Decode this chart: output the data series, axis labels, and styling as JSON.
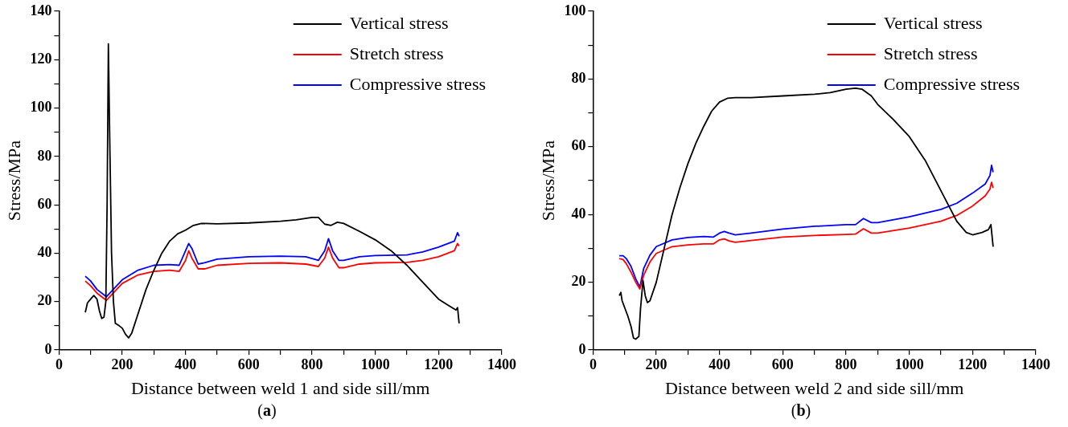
{
  "chart_data": [
    {
      "type": "line",
      "xlabel": "Distance between weld 1 and side sill/mm",
      "ylabel": "Stress/MPa",
      "annotations": [
        "(a)"
      ],
      "legend": "top right",
      "grid": false,
      "marker": "none",
      "line_style": "solid",
      "xlim": [
        0,
        1400
      ],
      "xticks": [
        0,
        {
          "value": 100,
          "label": null
        },
        200,
        {
          "value": 300,
          "label": null
        },
        400,
        {
          "value": 500,
          "label": null
        },
        600,
        {
          "value": 700,
          "label": null
        },
        800,
        {
          "value": 900,
          "label": null
        },
        1000,
        {
          "value": 1100,
          "label": null
        },
        1200,
        {
          "value": 1300,
          "label": null
        },
        1400
      ],
      "ylim": [
        0,
        140
      ],
      "yticks": [
        0,
        {
          "value": 10,
          "label": null
        },
        20,
        {
          "value": 30,
          "label": null
        },
        40,
        {
          "value": 50,
          "label": null
        },
        60,
        {
          "value": 70,
          "label": null
        },
        80,
        {
          "value": 90,
          "label": null
        },
        100,
        {
          "value": 110,
          "label": null
        },
        120,
        {
          "value": 130,
          "label": null
        },
        140
      ],
      "series": [
        {
          "name": "Vertical stress",
          "color": "#000000",
          "x": [
            83,
            90,
            100,
            110,
            120,
            128,
            135,
            142,
            148,
            152,
            156,
            160,
            166,
            172,
            178,
            190,
            200,
            210,
            220,
            230,
            250,
            275,
            300,
            325,
            350,
            375,
            400,
            425,
            450,
            500,
            600,
            700,
            750,
            800,
            820,
            840,
            860,
            880,
            900,
            950,
            1000,
            1050,
            1100,
            1150,
            1200,
            1230,
            1255,
            1260,
            1265
          ],
          "values": [
            15.5,
            19.5,
            21,
            22.5,
            21,
            16,
            13,
            13.5,
            20,
            60,
            126.5,
            90,
            40,
            20,
            11,
            10,
            9,
            6.5,
            5,
            7,
            15,
            25,
            33,
            40,
            45,
            48,
            49.5,
            51.5,
            52.3,
            52.1,
            52.5,
            53.2,
            53.8,
            54.8,
            54.8,
            52,
            51.5,
            52.8,
            52.3,
            49,
            45.5,
            41,
            35,
            28,
            21,
            18.5,
            16.5,
            17.5,
            11
          ]
        },
        {
          "name": "Stretch stress",
          "color": "#ff0000",
          "x": [
            83,
            100,
            120,
            150,
            175,
            200,
            250,
            300,
            350,
            380,
            400,
            410,
            420,
            440,
            460,
            500,
            600,
            700,
            780,
            820,
            840,
            852,
            865,
            885,
            900,
            950,
            1000,
            1100,
            1150,
            1200,
            1250,
            1260,
            1265
          ],
          "values": [
            28.5,
            26.5,
            23.5,
            20.5,
            24,
            27.5,
            31,
            32.5,
            33,
            32.5,
            37,
            41,
            38,
            33.5,
            33.5,
            35,
            35.8,
            36,
            35.5,
            34.5,
            38,
            42.5,
            38,
            34,
            34,
            35.5,
            36,
            36.2,
            37,
            38.5,
            41,
            44,
            43
          ]
        },
        {
          "name": "Compressive stress",
          "color": "#0000ff",
          "x": [
            83,
            100,
            120,
            150,
            175,
            200,
            250,
            300,
            350,
            380,
            400,
            410,
            420,
            440,
            460,
            500,
            600,
            700,
            780,
            820,
            840,
            852,
            865,
            885,
            900,
            950,
            1000,
            1100,
            1150,
            1200,
            1250,
            1260,
            1265
          ],
          "values": [
            30.5,
            28.5,
            25,
            22,
            25.5,
            29,
            33,
            35,
            35.3,
            35,
            41,
            44,
            42,
            35.5,
            36,
            37.5,
            38.5,
            38.8,
            38.5,
            37,
            41,
            46,
            41,
            37,
            37,
            38.5,
            39,
            39.3,
            40.5,
            42.5,
            45,
            48.5,
            47
          ]
        }
      ]
    },
    {
      "type": "line",
      "xlabel": "Distance between weld 2 and side sill/mm",
      "ylabel": "Stress/MPa",
      "annotations": [
        "(b)"
      ],
      "legend": "top right",
      "grid": false,
      "marker": "none",
      "line_style": "solid",
      "xlim": [
        0,
        1400
      ],
      "xticks": [
        0,
        {
          "value": 100,
          "label": null
        },
        200,
        {
          "value": 300,
          "label": null
        },
        400,
        {
          "value": 500,
          "label": null
        },
        600,
        {
          "value": 700,
          "label": null
        },
        800,
        {
          "value": 900,
          "label": null
        },
        1000,
        {
          "value": 1100,
          "label": null
        },
        1200,
        {
          "value": 1300,
          "label": null
        },
        1400
      ],
      "ylim": [
        0,
        100
      ],
      "yticks": [
        0,
        {
          "value": 10,
          "label": null
        },
        20,
        {
          "value": 30,
          "label": null
        },
        40,
        {
          "value": 50,
          "label": null
        },
        60,
        {
          "value": 70,
          "label": null
        },
        80,
        {
          "value": 90,
          "label": null
        },
        100
      ],
      "series": [
        {
          "name": "Vertical stress",
          "color": "#000000",
          "x": [
            83,
            88,
            92,
            100,
            110,
            120,
            128,
            135,
            145,
            150,
            158,
            165,
            172,
            180,
            200,
            225,
            250,
            275,
            300,
            325,
            350,
            375,
            400,
            425,
            450,
            500,
            600,
            700,
            750,
            800,
            830,
            850,
            880,
            900,
            950,
            1000,
            1050,
            1100,
            1150,
            1180,
            1200,
            1230,
            1250,
            1258,
            1265
          ],
          "values": [
            16,
            17,
            14.5,
            12.5,
            10,
            7,
            3.5,
            3.2,
            4,
            12,
            20.5,
            16,
            14,
            14.5,
            20,
            30,
            40,
            48,
            55,
            61,
            66,
            70.5,
            73.2,
            74.3,
            74.5,
            74.5,
            75,
            75.5,
            76,
            77,
            77.3,
            77,
            75,
            72.5,
            68,
            63,
            56,
            47,
            38,
            34.7,
            34,
            34.7,
            35.5,
            37,
            30.5
          ]
        },
        {
          "name": "Stretch stress",
          "color": "#ff0000",
          "x": [
            83,
            95,
            105,
            120,
            135,
            148,
            160,
            180,
            200,
            250,
            300,
            350,
            380,
            400,
            415,
            430,
            450,
            500,
            600,
            700,
            800,
            830,
            855,
            880,
            900,
            1000,
            1100,
            1150,
            1200,
            1240,
            1255,
            1260,
            1265
          ],
          "values": [
            27,
            26.7,
            25.5,
            23,
            20,
            18,
            22,
            26,
            28.5,
            30.5,
            31,
            31.3,
            31.3,
            32.5,
            32.8,
            32.2,
            31.8,
            32.3,
            33.3,
            33.8,
            34.1,
            34.2,
            35.8,
            34.5,
            34.5,
            36,
            38,
            39.7,
            42.5,
            45.5,
            47.5,
            49.5,
            47.8
          ]
        },
        {
          "name": "Compressive stress",
          "color": "#0000ff",
          "x": [
            83,
            95,
            105,
            120,
            135,
            148,
            160,
            180,
            200,
            250,
            300,
            350,
            380,
            400,
            415,
            430,
            450,
            500,
            600,
            700,
            800,
            830,
            855,
            880,
            900,
            1000,
            1100,
            1150,
            1200,
            1240,
            1255,
            1260,
            1265
          ],
          "values": [
            27.8,
            27.8,
            27,
            24.7,
            21,
            18.5,
            24,
            28,
            30.5,
            32.5,
            33.2,
            33.5,
            33.3,
            34.5,
            35,
            34.5,
            34,
            34.5,
            35.7,
            36.5,
            37,
            37,
            38.8,
            37.6,
            37.6,
            39.3,
            41.5,
            43.3,
            46.3,
            49,
            51.5,
            54.5,
            52.5
          ]
        }
      ]
    }
  ]
}
